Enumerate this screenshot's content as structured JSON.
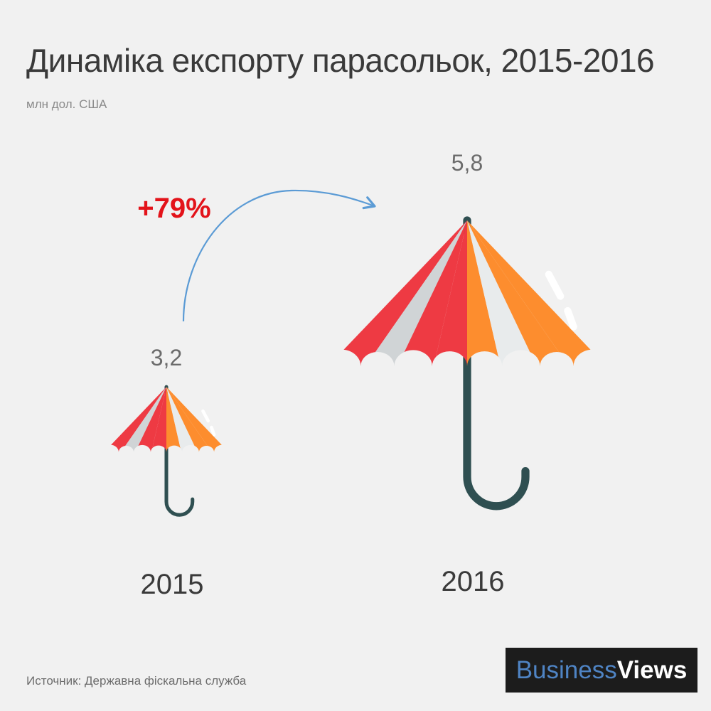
{
  "header": {
    "title": "Динаміка експорту парасольок, 2015-2016",
    "subtitle": "млн дол. США"
  },
  "footer": {
    "source": "Источник: Державна фіскальна служба",
    "brand_part1": "Business",
    "brand_part2": "Views"
  },
  "chart_data": {
    "type": "bar",
    "categories": [
      "2015",
      "2016"
    ],
    "values": [
      3.2,
      5.8
    ],
    "value_labels": [
      "3,2",
      "5,8"
    ],
    "change_label": "+79%",
    "unit": "млн дол. США",
    "title": "Динаміка експорту парасольок, 2015-2016"
  },
  "colors": {
    "background": "#f1f1f1",
    "canopy_red": "#ee3a43",
    "canopy_gray": "#d0d4d6",
    "canopy_light": "#e8ebec",
    "canopy_orange": "#fd8d2e",
    "handle": "#2f4f51",
    "arrow": "#5b9bd5",
    "change_text": "#e3131a"
  },
  "icons": [
    "umbrella-icon",
    "curved-arrow-icon"
  ]
}
